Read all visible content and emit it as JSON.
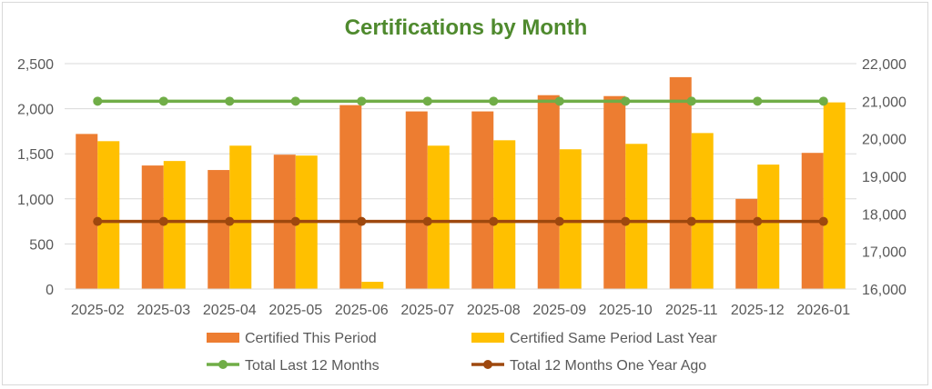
{
  "colors": {
    "certified_this_period": "#ED7D31",
    "certified_same_period_last_year": "#FFC000",
    "total_last_12_months": "#70AD47",
    "total_12_months_one_year_ago": "#9E480E",
    "title": "#4F8A2E",
    "axis_text": "#595959",
    "grid": "#D9D9D9"
  },
  "chart_data": {
    "type": "bar",
    "title": "Certifications by Month",
    "categories": [
      "2025-02",
      "2025-03",
      "2025-04",
      "2025-05",
      "2025-06",
      "2025-07",
      "2025-08",
      "2025-09",
      "2025-10",
      "2025-11",
      "2025-12",
      "2026-01"
    ],
    "y_left": {
      "ylim": [
        0,
        2500
      ],
      "ticks": [
        "0",
        "500",
        "1,000",
        "1,500",
        "2,000",
        "2,500"
      ]
    },
    "y_right": {
      "ylim": [
        16000,
        22000
      ],
      "ticks": [
        "16,000",
        "17,000",
        "18,000",
        "19,000",
        "20,000",
        "21,000",
        "22,000"
      ]
    },
    "grid": true,
    "legend_position": "bottom",
    "series": [
      {
        "name": "Certified This Period",
        "type": "bar",
        "axis": "left",
        "values": [
          1720,
          1370,
          1320,
          1490,
          2040,
          1970,
          1970,
          2150,
          2140,
          2350,
          1000,
          1510
        ]
      },
      {
        "name": "Certified Same Period Last Year",
        "type": "bar",
        "axis": "left",
        "values": [
          1640,
          1420,
          1590,
          1480,
          80,
          1590,
          1650,
          1550,
          1610,
          1730,
          1380,
          2070
        ]
      },
      {
        "name": "Total Last 12 Months",
        "type": "line",
        "axis": "right",
        "values": [
          21000,
          21000,
          21000,
          21000,
          21000,
          21000,
          21000,
          21000,
          21000,
          21000,
          21000,
          21000
        ]
      },
      {
        "name": "Total 12 Months One Year Ago",
        "type": "line",
        "axis": "right",
        "values": [
          17800,
          17800,
          17800,
          17800,
          17800,
          17800,
          17800,
          17800,
          17800,
          17800,
          17800,
          17800
        ]
      }
    ]
  }
}
